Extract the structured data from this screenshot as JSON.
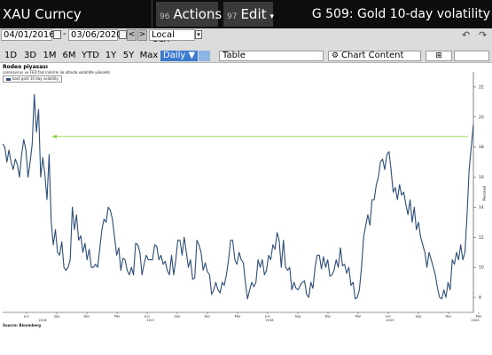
{
  "titlebar": {
    "ticker": "XAU Curncy",
    "actions_num": "96",
    "actions_label": "Actions",
    "edit_num": "97",
    "edit_label": "Edit",
    "caret": "▾",
    "function_title": "G 509: Gold 10-day volatility"
  },
  "controls": {
    "start_date": "04/01/2016",
    "end_date": "03/06/2020",
    "currency": "Local CCY",
    "prev": "<",
    "next": ">",
    "ranges": [
      "1D",
      "3D",
      "1M",
      "6M",
      "YTD",
      "1Y",
      "5Y",
      "Max"
    ],
    "frequency": "Daily ▼",
    "view": "Table",
    "chart_content": "Chart Content",
    "undo_icon": "undo-icon",
    "redo_icon": "redo-icon"
  },
  "chart_meta": {
    "title": "Rodeo piyasası",
    "subtitle": "coronavirus ve FED faiz indirimi ile altında volatilite yükseldi",
    "legend": "bast gold 10 day volatility",
    "source": "Source: Bloomberg",
    "ylabel": "Percent",
    "line_color": "#2b4c7a",
    "arrow_color": "#8ed34a"
  },
  "chart_data": {
    "type": "line",
    "title": "Rodeo piyasası",
    "ylabel": "Percent",
    "ylim": [
      7,
      23
    ],
    "yticks": [
      8,
      10,
      12,
      14,
      16,
      18,
      20,
      22
    ],
    "x_labels": [
      "Jun",
      "Sep",
      "Dec",
      "Mar",
      "Jun",
      "Sep",
      "Dec",
      "Mar",
      "Jun",
      "Sep",
      "Dec",
      "Mar",
      "Jun",
      "Sep",
      "Dec",
      "Mar"
    ],
    "year_labels": [
      "2016",
      "2017",
      "2018",
      "2019",
      "2020"
    ],
    "series": [
      {
        "name": "bast gold 10 day volatility",
        "values": [
          18.2,
          18.0,
          17.0,
          17.8,
          17.0,
          16.5,
          17.2,
          16.8,
          16.0,
          17.5,
          18.5,
          17.8,
          16.0,
          17.0,
          18.2,
          21.5,
          19.0,
          20.5,
          16.0,
          17.3,
          16.2,
          14.5,
          17.5,
          13.0,
          11.5,
          12.5,
          11.0,
          10.8,
          11.7,
          10.0,
          9.8,
          10.0,
          10.5,
          14.0,
          12.5,
          13.5,
          11.8,
          12.1,
          11.0,
          11.6,
          10.5,
          11.2,
          10.0,
          10.0,
          10.2,
          10.0,
          11.2,
          12.5,
          13.2,
          13.0,
          14.0,
          13.8,
          13.2,
          12.0,
          10.8,
          11.3,
          9.8,
          10.6,
          10.5,
          9.8,
          9.5,
          10.0,
          9.5,
          11.6,
          11.5,
          11.0,
          9.5,
          10.2,
          10.8,
          10.5,
          10.5,
          10.5,
          11.5,
          11.4,
          10.5,
          10.8,
          10.2,
          10.4,
          9.8,
          9.5,
          10.8,
          9.5,
          10.5,
          11.8,
          11.8,
          10.8,
          12.0,
          11.0,
          10.0,
          10.5,
          9.2,
          9.3,
          11.8,
          11.5,
          11.0,
          9.8,
          10.3,
          9.7,
          9.5,
          8.2,
          8.5,
          9.0,
          8.5,
          8.3,
          9.0,
          8.8,
          9.5,
          10.5,
          11.8,
          11.8,
          10.5,
          10.2,
          11.0,
          10.5,
          10.3,
          9.0,
          7.9,
          8.5,
          9.0,
          8.7,
          9.0,
          10.5,
          10.0,
          10.5,
          9.5,
          9.8,
          10.8,
          10.5,
          11.5,
          11.2,
          12.3,
          11.8,
          10.0,
          11.8,
          10.0,
          9.8,
          10.0,
          8.5,
          9.0,
          8.6,
          8.5,
          8.8,
          9.0,
          9.1,
          8.2,
          8.0,
          9.0,
          8.6,
          10.0,
          10.8,
          10.8,
          9.9,
          10.7,
          10.0,
          10.5,
          9.4,
          9.5,
          9.8,
          10.5,
          10.0,
          11.3,
          10.1,
          10.2,
          9.6,
          10.0,
          8.8,
          9.0,
          7.9,
          8.0,
          8.5,
          10.0,
          12.0,
          12.8,
          13.5,
          12.8,
          14.5,
          14.5,
          15.5,
          16.0,
          17.0,
          17.2,
          16.5,
          17.5,
          17.7,
          16.5,
          15.0,
          15.3,
          14.5,
          15.5,
          14.8,
          15.0,
          14.2,
          13.5,
          14.5,
          13.0,
          14.0,
          12.5,
          13.0,
          12.0,
          11.5,
          11.0,
          10.0,
          11.0,
          10.5,
          10.0,
          9.5,
          8.6,
          8.0,
          7.9,
          8.5,
          8.0,
          9.0,
          8.5,
          10.5,
          10.2,
          11.0,
          10.5,
          11.5,
          10.5,
          11.0,
          13.5,
          16.5,
          18.0,
          19.5
        ]
      }
    ],
    "arrow": {
      "from_value": 18.7,
      "to_value": 18.7
    },
    "grid": false,
    "legend_position": "top-left"
  }
}
